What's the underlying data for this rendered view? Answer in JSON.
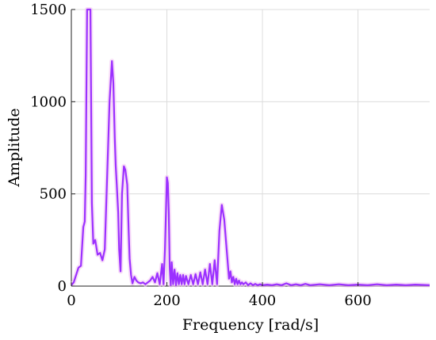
{
  "chart_data": {
    "type": "line",
    "title": "",
    "xlabel": "Frequency [rad/s]",
    "ylabel": "Amplitude",
    "xlim": [
      0,
      750
    ],
    "ylim": [
      0,
      1500
    ],
    "xticks": [
      0,
      200,
      400,
      600
    ],
    "yticks": [
      0,
      500,
      1000,
      1500
    ],
    "xtick_labels": [
      "0",
      "200",
      "400",
      "600"
    ],
    "ytick_labels": [
      "0",
      "500",
      "1000",
      "1500"
    ],
    "grid": true,
    "legend": "none",
    "series": [
      {
        "color": "#9b30ff",
        "x": [
          0,
          5,
          10,
          15,
          20,
          25,
          28,
          30,
          33,
          35,
          37,
          40,
          43,
          46,
          50,
          55,
          60,
          65,
          70,
          75,
          80,
          85,
          88,
          91,
          93,
          95,
          98,
          100,
          103,
          106,
          110,
          113,
          117,
          120,
          122,
          125,
          128,
          132,
          136,
          140,
          145,
          150,
          155,
          160,
          165,
          170,
          175,
          180,
          185,
          190,
          193,
          196,
          200,
          202,
          204,
          206,
          208,
          210,
          213,
          216,
          219,
          222,
          225,
          228,
          231,
          234,
          237,
          240,
          245,
          250,
          255,
          260,
          265,
          270,
          275,
          280,
          285,
          290,
          295,
          300,
          305,
          310,
          315,
          320,
          325,
          330,
          333,
          336,
          339,
          342,
          345,
          348,
          351,
          354,
          357,
          360,
          365,
          370,
          375,
          380,
          385,
          390,
          395,
          400,
          410,
          420,
          430,
          440,
          450,
          460,
          470,
          480,
          490,
          500,
          520,
          540,
          560,
          580,
          600,
          620,
          640,
          660,
          680,
          700,
          720,
          750
        ],
        "y": [
          5,
          20,
          60,
          100,
          110,
          320,
          350,
          600,
          1500,
          1500,
          1500,
          1500,
          450,
          230,
          250,
          170,
          180,
          140,
          200,
          600,
          1000,
          1220,
          1100,
          800,
          650,
          550,
          400,
          200,
          80,
          500,
          650,
          630,
          550,
          300,
          150,
          60,
          15,
          50,
          30,
          20,
          15,
          20,
          10,
          20,
          30,
          50,
          20,
          70,
          10,
          120,
          10,
          200,
          590,
          560,
          400,
          100,
          5,
          130,
          10,
          90,
          5,
          70,
          10,
          60,
          10,
          60,
          10,
          55,
          10,
          60,
          10,
          65,
          10,
          75,
          10,
          90,
          10,
          120,
          10,
          140,
          10,
          300,
          440,
          360,
          200,
          40,
          80,
          20,
          50,
          10,
          40,
          10,
          30,
          10,
          20,
          10,
          20,
          5,
          15,
          5,
          12,
          5,
          10,
          5,
          8,
          5,
          10,
          5,
          15,
          5,
          10,
          5,
          12,
          5,
          10,
          5,
          10,
          5,
          8,
          5,
          10,
          5,
          8,
          5,
          8,
          5
        ]
      }
    ]
  }
}
